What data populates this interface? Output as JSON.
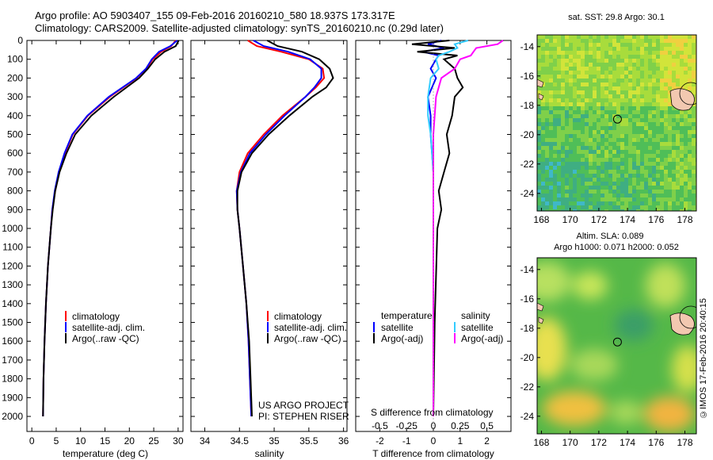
{
  "header": {
    "title_line1": "Argo profile: AO 5903407_155 09-Feb-2016 20160210_580 18.937S 173.317E",
    "title_line2": "Climatology: CARS2009. Satellite-adjusted climatology: synTS_20160210.nc (0.29d later)"
  },
  "footer": {
    "timestamp": "©IMOS 17-Feb-2016 20:40:15"
  },
  "colors": {
    "climatology": "#ff0000",
    "satellite": "#0000ff",
    "argo": "#000000",
    "sat_salinity": "#33ccff",
    "argo_salinity": "#ff00ff"
  },
  "chart_data": [
    {
      "type": "line",
      "id": "temperature",
      "xlabel": "temperature (deg C)",
      "ylabel": "",
      "xlim": [
        -1,
        31
      ],
      "ylim": [
        2080,
        0
      ],
      "xticks": [
        0,
        5,
        10,
        15,
        20,
        25,
        30
      ],
      "yticks": [
        0,
        100,
        200,
        300,
        400,
        500,
        600,
        700,
        800,
        900,
        1000,
        1100,
        1200,
        1300,
        1400,
        1500,
        1600,
        1700,
        1800,
        1900,
        2000
      ],
      "legend": [
        "climatology",
        "satellite-adj. clim.",
        "Argo(..raw -QC)"
      ],
      "series": [
        {
          "name": "climatology",
          "color": "#ff0000",
          "depth": [
            0,
            30,
            60,
            100,
            150,
            200,
            300,
            400,
            500,
            600,
            700,
            800,
            900,
            1000,
            1200,
            1400,
            1600,
            1800,
            2000
          ],
          "values": [
            29.5,
            28.6,
            26.5,
            24.8,
            23.5,
            21.5,
            16.0,
            11.5,
            8.4,
            6.8,
            5.6,
            4.8,
            4.2,
            3.9,
            3.3,
            2.9,
            2.6,
            2.4,
            2.3
          ]
        },
        {
          "name": "satellite-adj. clim.",
          "color": "#0000ff",
          "depth": [
            0,
            30,
            60,
            100,
            150,
            200,
            300,
            400,
            500,
            600,
            700,
            800,
            900,
            1000,
            1200,
            1400,
            1600,
            1800,
            2000
          ],
          "values": [
            29.8,
            28.4,
            26.1,
            24.6,
            23.4,
            21.4,
            15.8,
            11.4,
            8.3,
            6.7,
            5.5,
            4.7,
            4.2,
            3.9,
            3.3,
            2.9,
            2.6,
            2.4,
            2.3
          ]
        },
        {
          "name": "Argo(..raw -QC)",
          "color": "#000000",
          "depth": [
            0,
            30,
            60,
            100,
            150,
            200,
            300,
            400,
            500,
            600,
            700,
            800,
            900,
            1000,
            1200,
            1400,
            1600,
            1800,
            2000
          ],
          "values": [
            30.1,
            29.5,
            27.2,
            25.3,
            23.8,
            22.0,
            16.8,
            12.2,
            8.9,
            7.1,
            5.7,
            4.8,
            4.3,
            3.9,
            3.3,
            2.9,
            2.6,
            2.4,
            2.3
          ]
        }
      ]
    },
    {
      "type": "line",
      "id": "salinity",
      "xlabel": "salinity",
      "ylabel": "",
      "xlim": [
        33.8,
        36.05
      ],
      "ylim": [
        2080,
        0
      ],
      "xticks": [
        34,
        34.5,
        35,
        35.5,
        36
      ],
      "legend": [
        "climatology",
        "satellite-adj. clim.",
        "Argo(..raw -QC)"
      ],
      "annotation": [
        "US ARGO PROJECT",
        "PI: STEPHEN RISER"
      ],
      "series": [
        {
          "name": "climatology",
          "color": "#ff0000",
          "depth": [
            0,
            30,
            60,
            100,
            150,
            200,
            250,
            300,
            400,
            500,
            600,
            700,
            800,
            900,
            1000,
            1200,
            1400,
            1600,
            1800,
            2000
          ],
          "values": [
            34.62,
            34.75,
            35.1,
            35.5,
            35.7,
            35.72,
            35.6,
            35.45,
            35.12,
            34.85,
            34.62,
            34.5,
            34.46,
            34.47,
            34.5,
            34.55,
            34.6,
            34.63,
            34.65,
            34.67
          ]
        },
        {
          "name": "satellite-adj. clim.",
          "color": "#0000ff",
          "depth": [
            0,
            30,
            60,
            100,
            150,
            200,
            250,
            300,
            400,
            500,
            600,
            700,
            800,
            900,
            1000,
            1200,
            1400,
            1600,
            1800,
            2000
          ],
          "values": [
            34.7,
            34.85,
            35.2,
            35.52,
            35.68,
            35.68,
            35.58,
            35.45,
            35.15,
            34.88,
            34.65,
            34.52,
            34.46,
            34.47,
            34.5,
            34.55,
            34.6,
            34.63,
            34.65,
            34.67
          ]
        },
        {
          "name": "Argo(..raw -QC)",
          "color": "#000000",
          "depth": [
            0,
            30,
            60,
            100,
            150,
            200,
            250,
            300,
            400,
            500,
            600,
            700,
            800,
            900,
            1000,
            1200,
            1400,
            1600,
            1800,
            2000
          ],
          "values": [
            34.9,
            35.05,
            35.4,
            35.65,
            35.8,
            35.85,
            35.75,
            35.55,
            35.22,
            34.92,
            34.68,
            34.53,
            34.47,
            34.47,
            34.5,
            34.55,
            34.6,
            34.64,
            34.66,
            34.68
          ]
        }
      ]
    },
    {
      "type": "line",
      "id": "differences",
      "xlabel_bottom": "T difference from climatology",
      "xlabel_top": "S difference from climatology",
      "xlim": [
        -2.9,
        2.9
      ],
      "ylim": [
        2080,
        0
      ],
      "xticks_bottom": [
        -2,
        -1,
        0,
        1,
        2
      ],
      "xticks_top_labels": [
        "-0.5",
        "-0.25",
        "0",
        "0.25",
        "0.5"
      ],
      "legend_headers": [
        "temperature",
        "salinity"
      ],
      "legend": [
        "satellite",
        "Argo(-adj)",
        "satellite",
        "Argo(-adj)"
      ],
      "series": [
        {
          "name": "satellite",
          "color": "#0000ff",
          "depth": [
            0,
            20,
            40,
            60,
            80,
            100,
            150,
            200,
            300,
            400,
            500,
            600,
            700,
            800,
            1000,
            1500,
            2000
          ],
          "values": [
            0.3,
            -0.2,
            0.4,
            -0.4,
            0.2,
            0.1,
            -0.1,
            0.1,
            -0.2,
            -0.1,
            -0.1,
            -0.05,
            0.0,
            0.0,
            0.0,
            0.0,
            0.0
          ]
        },
        {
          "name": "Argo(-adj)",
          "color": "#000000",
          "depth": [
            0,
            20,
            40,
            60,
            80,
            100,
            150,
            200,
            250,
            300,
            400,
            500,
            600,
            700,
            800,
            900,
            1000,
            1500,
            2000
          ],
          "values": [
            0.6,
            -0.8,
            0.8,
            -0.6,
            0.9,
            0.4,
            0.8,
            0.9,
            1.1,
            0.8,
            0.7,
            0.5,
            0.6,
            0.4,
            0.2,
            0.3,
            0.15,
            0.05,
            0.0
          ]
        },
        {
          "name": "satellite",
          "color": "#33ccff",
          "depth": [
            0,
            20,
            40,
            60,
            80,
            100,
            150,
            200,
            300,
            400,
            500,
            600,
            700,
            800,
            1000,
            1500,
            2000
          ],
          "values": [
            1.3,
            0.8,
            0.9,
            0.6,
            0.2,
            0.1,
            0.2,
            -0.1,
            -0.2,
            -0.2,
            -0.1,
            -0.05,
            0.0,
            0.0,
            0.0,
            0.0,
            0.0
          ]
        },
        {
          "name": "Argo(-adj)",
          "color": "#ff00ff",
          "depth": [
            0,
            20,
            40,
            60,
            80,
            100,
            150,
            200,
            300,
            400,
            500,
            600,
            700,
            800,
            1000,
            1500,
            2000
          ],
          "values": [
            2.6,
            2.4,
            1.6,
            1.5,
            1.4,
            1.0,
            0.8,
            0.3,
            0.1,
            0.05,
            0.0,
            0.0,
            0.0,
            0.0,
            0.0,
            0.0,
            0.0
          ]
        }
      ]
    },
    {
      "type": "heatmap",
      "id": "sst-map",
      "title": "sat. SST: 29.8  Argo: 30.1",
      "xlim": [
        167.7,
        178.8
      ],
      "ylim": [
        -25.2,
        -13.2
      ],
      "xticks": [
        168,
        170,
        172,
        174,
        176,
        178
      ],
      "yticks": [
        -14,
        -16,
        -18,
        -20,
        -22,
        -24
      ],
      "argo_position": {
        "lon": 173.3,
        "lat": -18.94
      }
    },
    {
      "type": "heatmap",
      "id": "sla-map",
      "title_line1": "Altim. SLA: 0.089",
      "title_line2": "Argo h1000: 0.071 h2000: 0.052",
      "xlim": [
        167.7,
        178.8
      ],
      "ylim": [
        -25.2,
        -13.2
      ],
      "xticks": [
        168,
        170,
        172,
        174,
        176,
        178
      ],
      "yticks": [
        -14,
        -16,
        -18,
        -20,
        -22,
        -24
      ],
      "argo_position": {
        "lon": 173.3,
        "lat": -18.94
      }
    }
  ]
}
